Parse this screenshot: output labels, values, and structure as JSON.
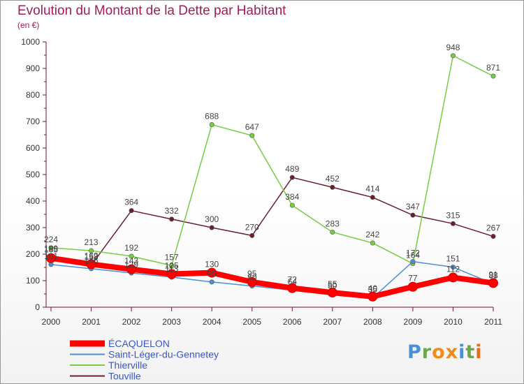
{
  "title": "Evolution du Montant de la Dette par Habitant",
  "subtitle": "(en €)",
  "logo": {
    "letters": [
      "P",
      "r",
      "o",
      "x",
      "i",
      "t",
      "i"
    ],
    "colors": [
      "#4a90d6",
      "#6aa84f",
      "#f08a1d",
      "#f08a1d",
      "#4a90d6",
      "#6aa84f",
      "#e36c1d"
    ]
  },
  "chart_data": {
    "type": "line",
    "categories": [
      "2000",
      "2001",
      "2002",
      "2003",
      "2004",
      "2005",
      "2006",
      "2007",
      "2008",
      "2009",
      "2010",
      "2011"
    ],
    "ylim": [
      0,
      1000
    ],
    "yticks": [
      0,
      100,
      200,
      300,
      400,
      500,
      600,
      700,
      800,
      900,
      1000
    ],
    "grid": false,
    "legend_position": "bottom-left",
    "series": [
      {
        "name": "ÉCAQUELON",
        "color": "#ff0000",
        "values": [
          185,
          162,
          143,
          125,
          130,
          95,
          72,
          55,
          40,
          77,
          112,
          91
        ]
      },
      {
        "name": "Saint-Léger-du-Gennetey",
        "color": "#4a8fd8",
        "values": [
          161,
          145,
          129,
          113,
          95,
          80,
          64,
          50,
          35,
          172,
          151,
          88
        ]
      },
      {
        "name": "Thierville",
        "color": "#77cc44",
        "values": [
          224,
          213,
          192,
          157,
          688,
          647,
          384,
          283,
          242,
          164,
          948,
          871
        ]
      },
      {
        "name": "Touville",
        "color": "#6b1f2a",
        "values": [
          189,
          158,
          364,
          332,
          300,
          270,
          489,
          452,
          414,
          347,
          315,
          267
        ]
      }
    ]
  }
}
